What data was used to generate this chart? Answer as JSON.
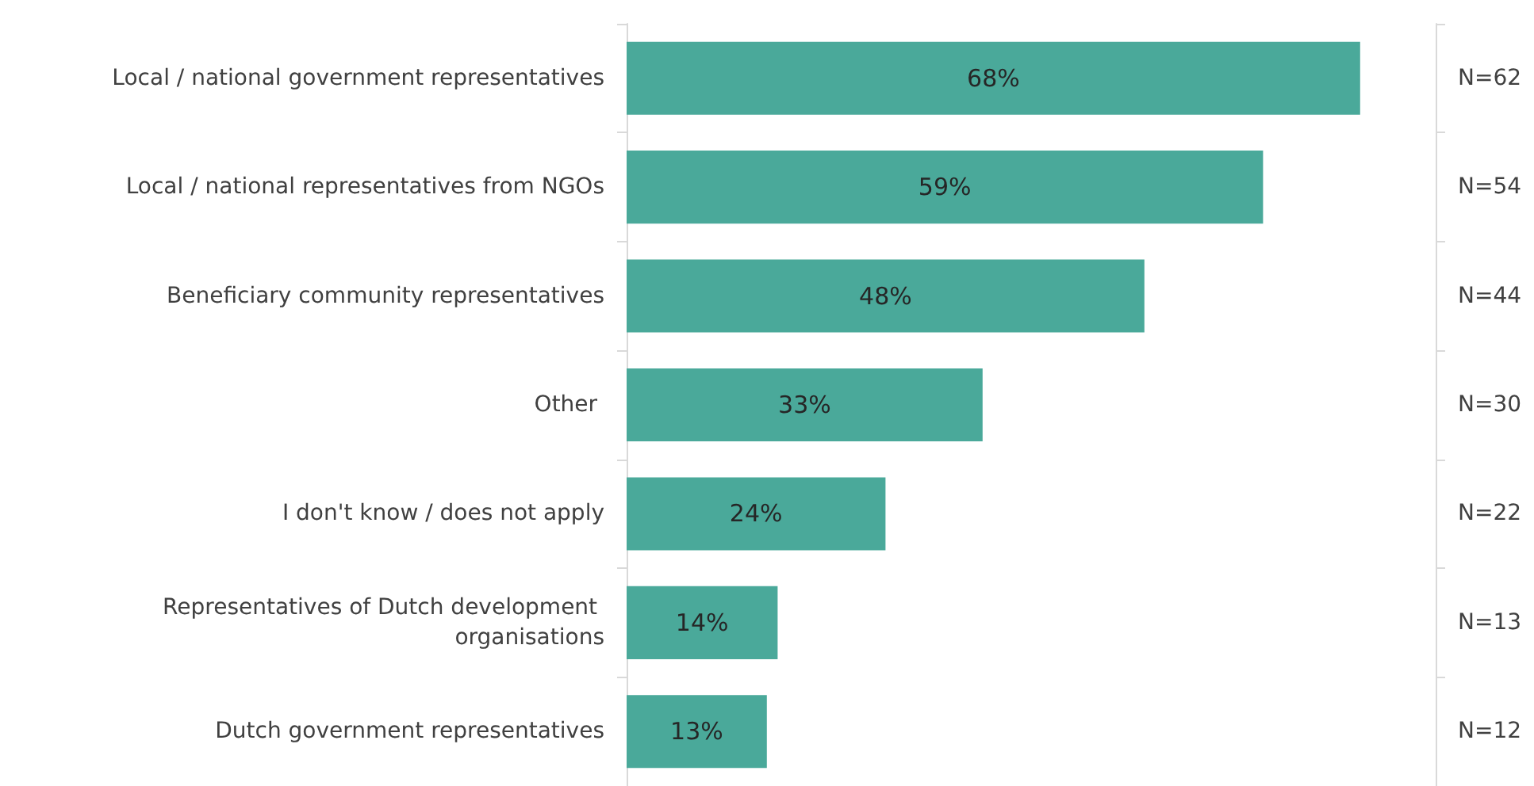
{
  "chart_data": {
    "type": "bar",
    "orientation": "horizontal",
    "categories": [
      "Local / national government representatives",
      "Local / national representatives from NGOs",
      "Beneficiary community representatives",
      "Other ",
      "I don't know / does not apply",
      "Representatives of Dutch development organisations",
      "Dutch government representatives"
    ],
    "y2_categories": [
      "N=62",
      "N=54",
      "N=44",
      "N=30",
      "N=22",
      "N=13",
      "N=12"
    ],
    "values": [
      68,
      59,
      48,
      33,
      24,
      14,
      13
    ],
    "value_labels": [
      "68%",
      "59%",
      "48%",
      "33%",
      "24%",
      "14%",
      "13%"
    ],
    "color": "#4aa99a",
    "xlim": [
      0,
      75
    ],
    "tick_labels": "y"
  }
}
